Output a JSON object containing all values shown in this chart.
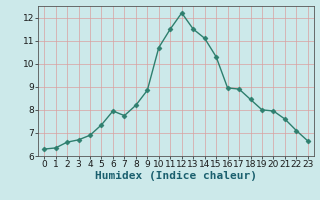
{
  "x": [
    0,
    1,
    2,
    3,
    4,
    5,
    6,
    7,
    8,
    9,
    10,
    11,
    12,
    13,
    14,
    15,
    16,
    17,
    18,
    19,
    20,
    21,
    22,
    23
  ],
  "y": [
    6.3,
    6.35,
    6.6,
    6.7,
    6.9,
    7.35,
    7.95,
    7.75,
    8.2,
    8.85,
    10.7,
    11.5,
    12.2,
    11.5,
    11.1,
    10.3,
    8.95,
    8.9,
    8.45,
    8.0,
    7.95,
    7.6,
    7.1,
    6.65
  ],
  "line_color": "#2e7f6e",
  "marker": "D",
  "marker_size": 2.5,
  "line_width": 1.0,
  "xlabel": "Humidex (Indice chaleur)",
  "xlabel_fontsize": 8,
  "ylim": [
    6,
    12.5
  ],
  "xlim": [
    -0.5,
    23.5
  ],
  "yticks": [
    6,
    7,
    8,
    9,
    10,
    11,
    12
  ],
  "xticks": [
    0,
    1,
    2,
    3,
    4,
    5,
    6,
    7,
    8,
    9,
    10,
    11,
    12,
    13,
    14,
    15,
    16,
    17,
    18,
    19,
    20,
    21,
    22,
    23
  ],
  "background_color": "#cce9ea",
  "grid_color_major": "#d9a0a0",
  "grid_color_minor": "#ddc0c0",
  "tick_fontsize": 6.5,
  "spine_color": "#555555"
}
